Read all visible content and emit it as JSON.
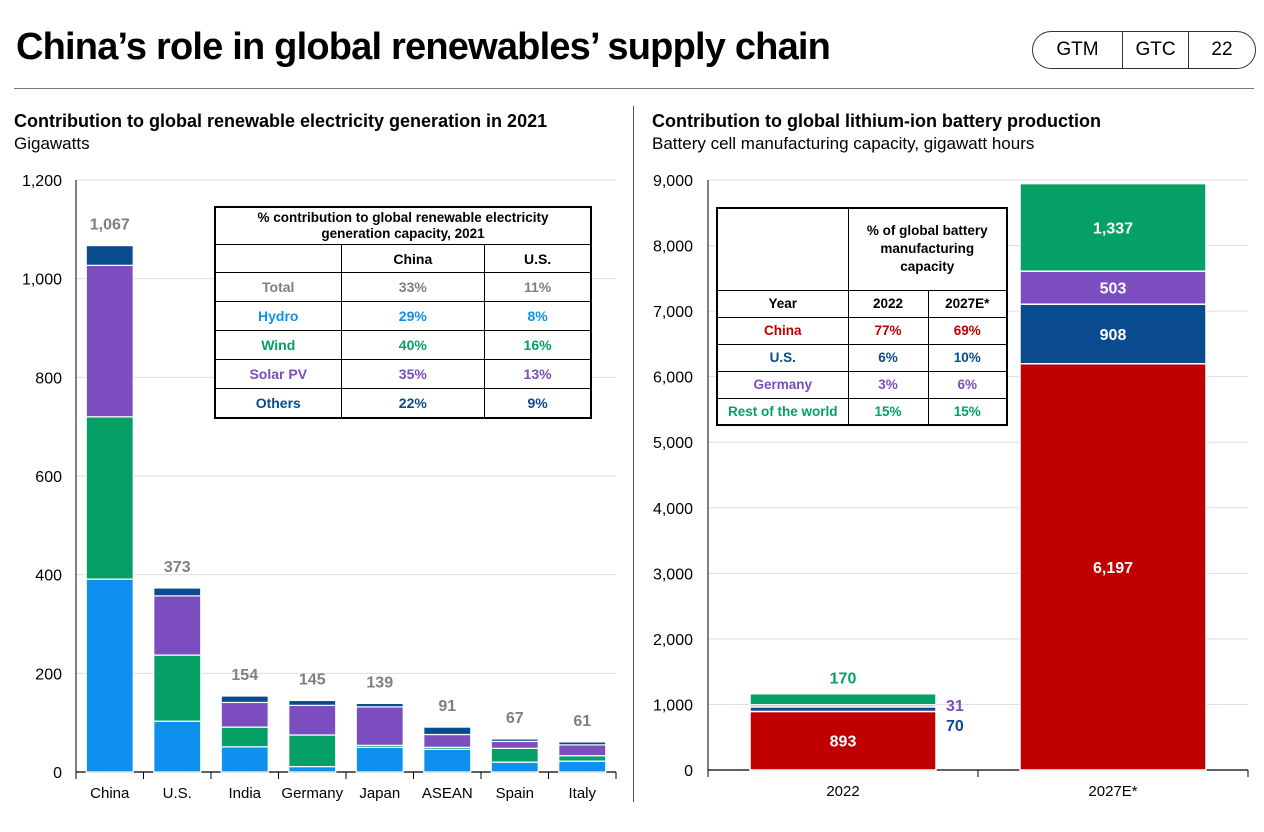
{
  "header": {
    "title": "China’s role in global renewables’ supply chain",
    "badge": [
      "GTM",
      "GTC",
      "22"
    ]
  },
  "colors": {
    "hydro": "#0e90ef",
    "wind": "#05a065",
    "solar": "#7b4dbf",
    "others": "#0a4a8e",
    "total_label": "#7f7f7f",
    "china_red": "#c00000",
    "us_blue": "#0a4a8e",
    "germany_purple": "#7b4dbf",
    "row_green": "#05a065"
  },
  "left": {
    "title": "Contribution to global renewable electricity generation in 2021",
    "subtitle": "Gigawatts",
    "table": {
      "caption": "% contribution to global renewable electricity generation capacity, 2021",
      "columns": [
        "China",
        "U.S."
      ],
      "rows": [
        {
          "label": "Total",
          "china": "33%",
          "us": "11%"
        },
        {
          "label": "Hydro",
          "china": "29%",
          "us": "8%"
        },
        {
          "label": "Wind",
          "china": "40%",
          "us": "16%"
        },
        {
          "label": "Solar PV",
          "china": "35%",
          "us": "13%"
        },
        {
          "label": "Others",
          "china": "22%",
          "us": "9%"
        }
      ]
    }
  },
  "right": {
    "title": "Contribution to global lithium-ion battery production",
    "subtitle": "Battery cell manufacturing capacity, gigawatt hours",
    "table": {
      "caption": "% of global battery manufacturing capacity",
      "year_label": "Year",
      "columns": [
        "2022",
        "2027E*"
      ],
      "rows": [
        {
          "label": "China",
          "v2022": "77%",
          "v2027": "69%"
        },
        {
          "label": "U.S.",
          "v2022": "6%",
          "v2027": "10%"
        },
        {
          "label": "Germany",
          "v2022": "3%",
          "v2027": "6%"
        },
        {
          "label": "Rest of the world",
          "v2022": "15%",
          "v2027": "15%"
        }
      ]
    }
  },
  "chart_data": [
    {
      "type": "bar",
      "stacked": true,
      "title": "Contribution to global renewable electricity generation in 2021",
      "ylabel": "Gigawatts",
      "ylim": [
        0,
        1200
      ],
      "yticks": [
        0,
        200,
        400,
        600,
        800,
        1000,
        1200
      ],
      "ytick_labels": [
        "0",
        "200",
        "400",
        "600",
        "800",
        "1,000",
        "1,200"
      ],
      "grid": true,
      "categories": [
        "China",
        "U.S.",
        "India",
        "Germany",
        "Japan",
        "ASEAN",
        "Spain",
        "Italy"
      ],
      "totals": [
        1067,
        373,
        154,
        145,
        139,
        91,
        67,
        61
      ],
      "total_labels": [
        "1,067",
        "373",
        "154",
        "145",
        "139",
        "91",
        "67",
        "61"
      ],
      "series": [
        {
          "name": "Hydro",
          "values": [
            391,
            103,
            51,
            11,
            50,
            46,
            20,
            22
          ]
        },
        {
          "name": "Wind",
          "values": [
            329,
            134,
            40,
            64,
            4,
            4,
            28,
            11
          ]
        },
        {
          "name": "Solar PV",
          "values": [
            307,
            120,
            50,
            60,
            78,
            26,
            14,
            22
          ]
        },
        {
          "name": "Others",
          "values": [
            40,
            16,
            13,
            10,
            7,
            15,
            5,
            6
          ]
        }
      ]
    },
    {
      "type": "bar",
      "stacked": true,
      "title": "Contribution to global lithium-ion battery production",
      "ylabel": "Battery cell manufacturing capacity, gigawatt hours",
      "ylim": [
        0,
        9000
      ],
      "yticks": [
        0,
        1000,
        2000,
        3000,
        4000,
        5000,
        6000,
        7000,
        8000,
        9000
      ],
      "ytick_labels": [
        "0",
        "1,000",
        "2,000",
        "3,000",
        "4,000",
        "5,000",
        "6,000",
        "7,000",
        "8,000",
        "9,000"
      ],
      "grid": true,
      "categories": [
        "2022",
        "2027E*"
      ],
      "series": [
        {
          "name": "China",
          "values": [
            893,
            6197
          ],
          "labels": [
            "893",
            "6,197"
          ]
        },
        {
          "name": "U.S.",
          "values": [
            70,
            908
          ],
          "labels": [
            "70",
            "908"
          ]
        },
        {
          "name": "Germany",
          "values": [
            31,
            503
          ],
          "labels": [
            "31",
            "503"
          ]
        },
        {
          "name": "Rest of the world",
          "values": [
            170,
            1337
          ],
          "labels": [
            "170",
            "1,337"
          ]
        }
      ]
    }
  ]
}
